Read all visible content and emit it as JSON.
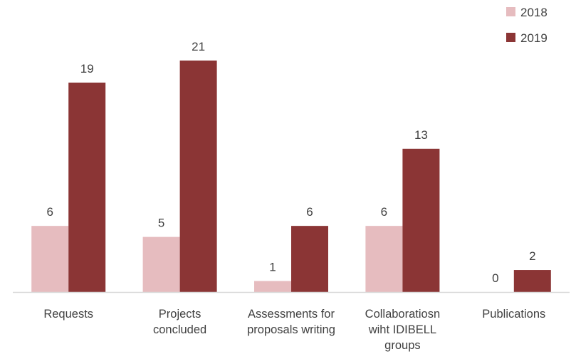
{
  "chart_data": {
    "type": "bar",
    "categories": [
      [
        "Requests"
      ],
      [
        "Projects",
        "concluded"
      ],
      [
        "Assessments for",
        "proposals writing"
      ],
      [
        "Collaboratiosn",
        "wiht IDIBELL",
        "groups"
      ],
      [
        "Publications"
      ]
    ],
    "series": [
      {
        "name": "2018",
        "color": "#e6bcbf",
        "values": [
          6,
          5,
          1,
          6,
          0
        ]
      },
      {
        "name": "2019",
        "color": "#8b3535",
        "values": [
          19,
          21,
          6,
          13,
          2
        ]
      }
    ],
    "ylim": [
      0,
      21
    ],
    "grid": false,
    "legend_position": "top-right",
    "axis_color": "#d9d9d9"
  }
}
